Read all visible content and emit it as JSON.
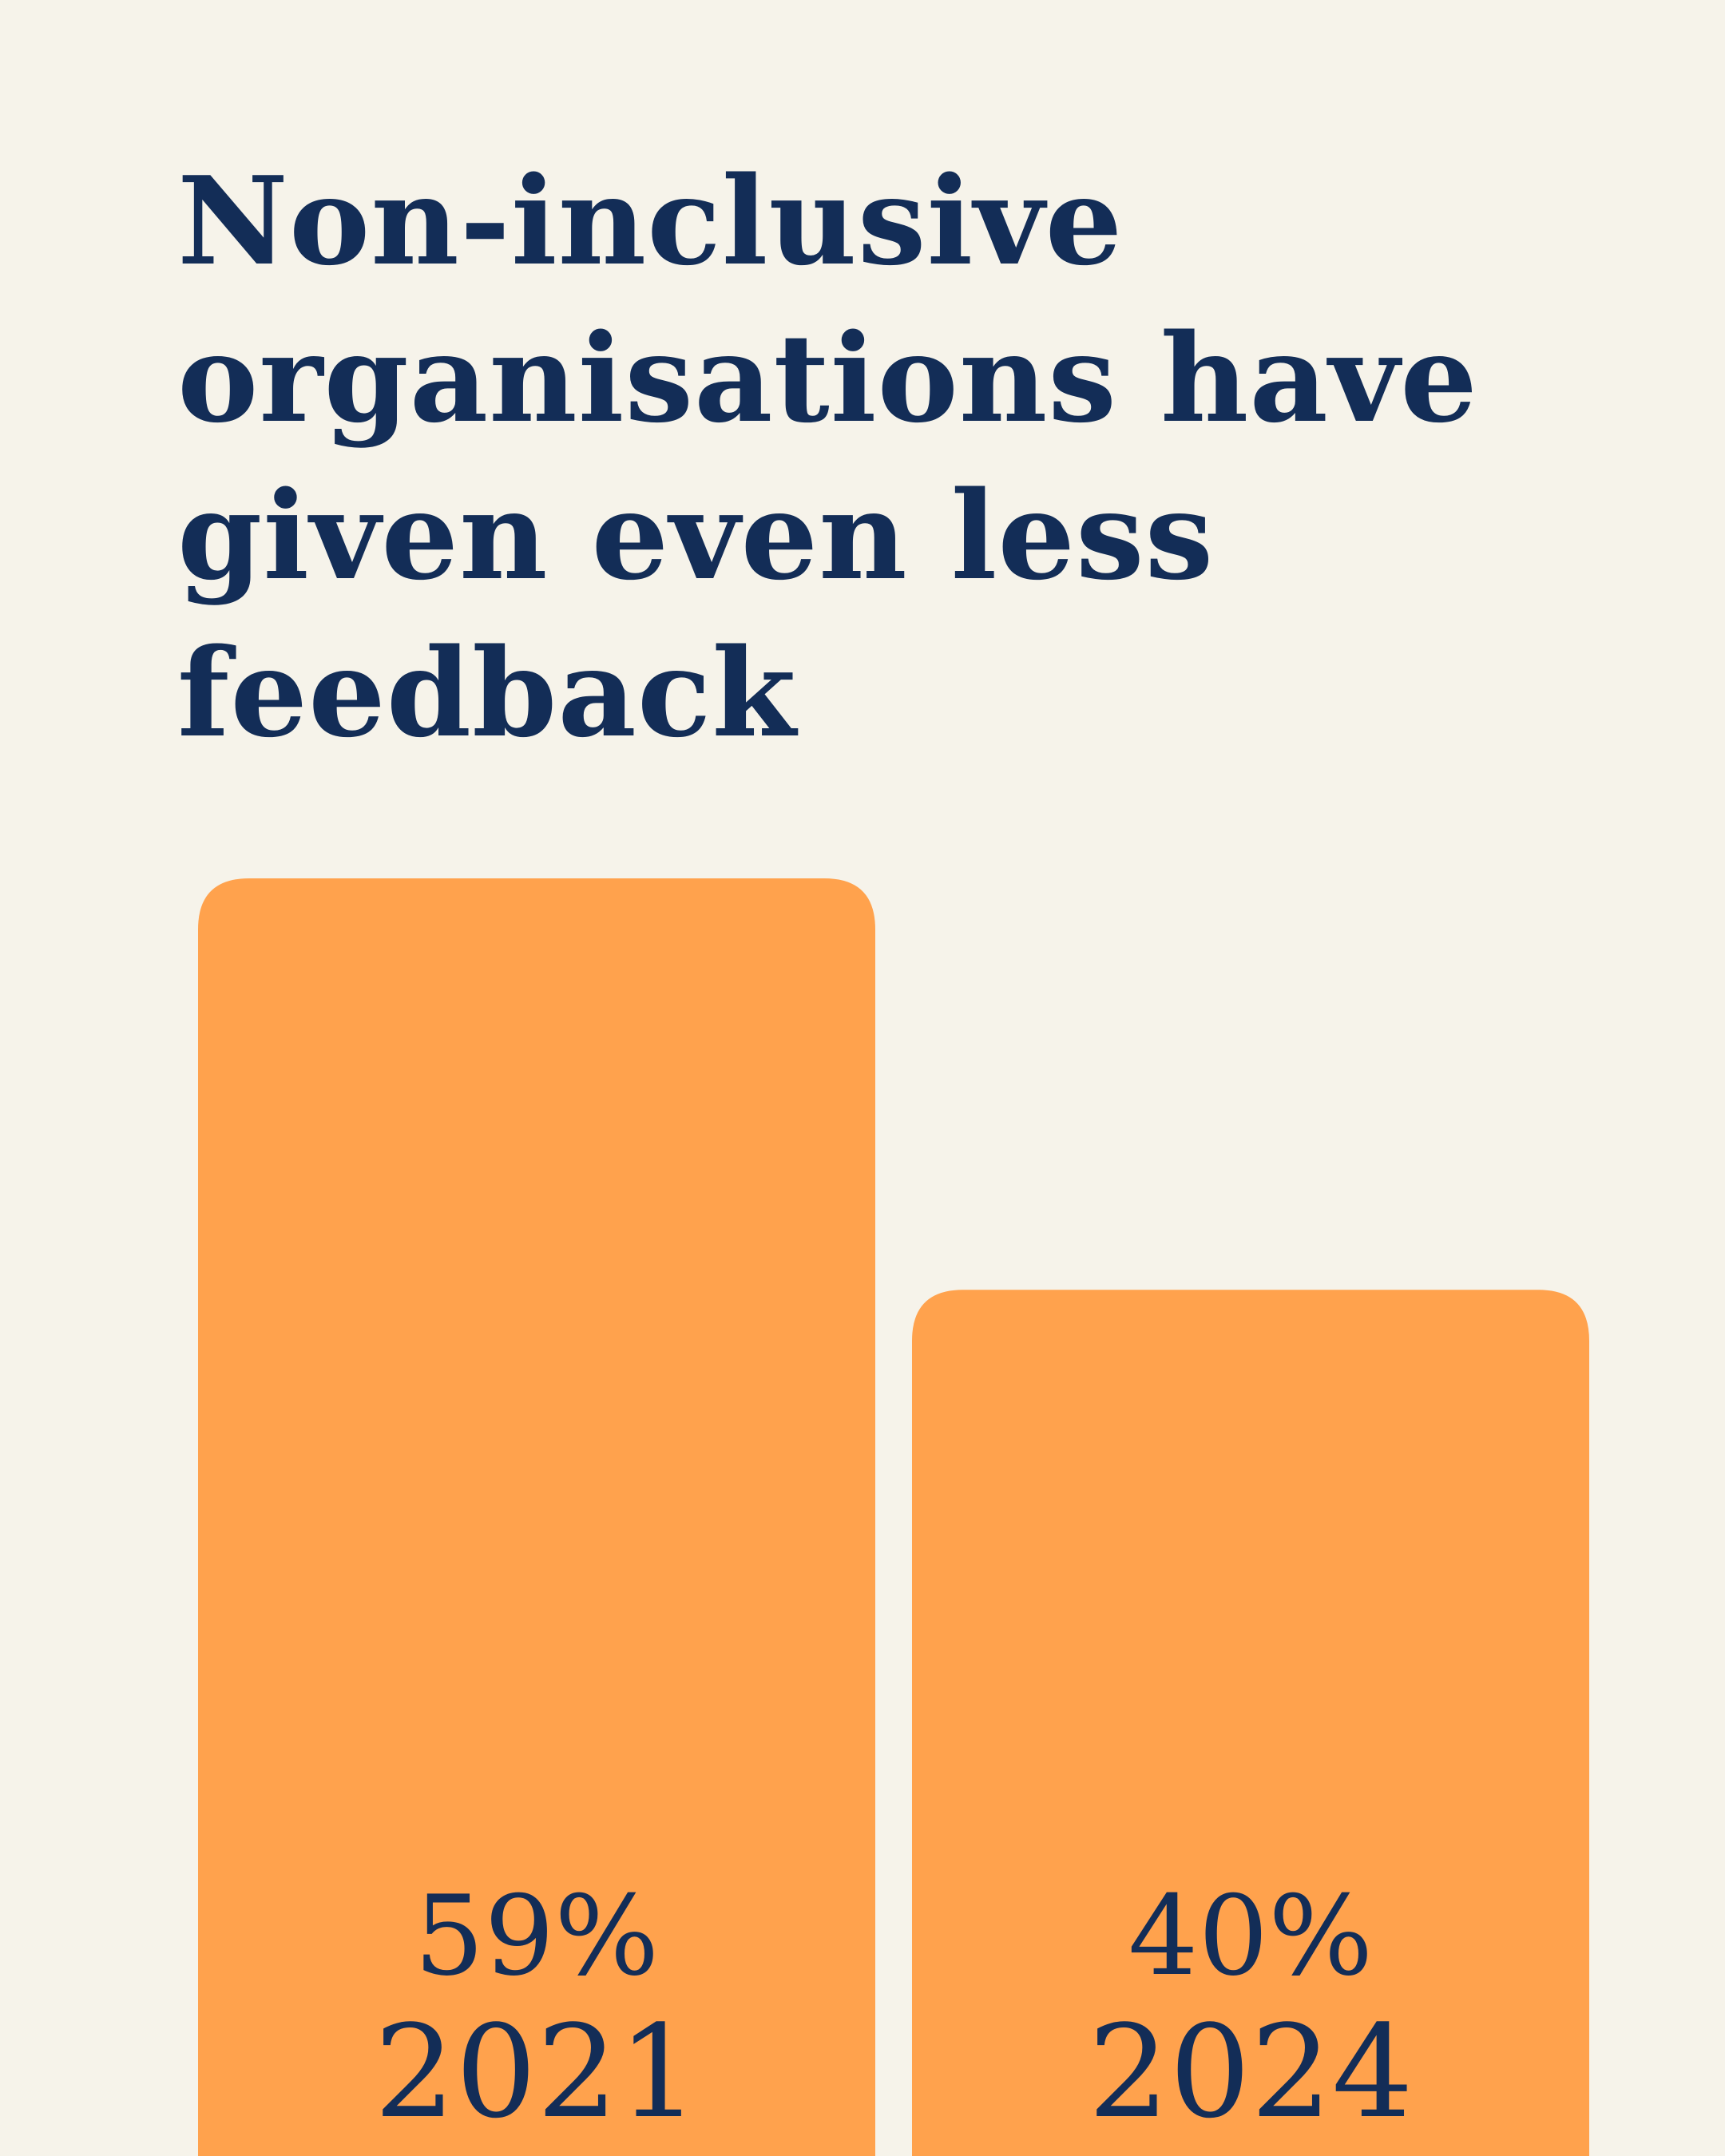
{
  "chart_data": {
    "type": "bar",
    "title": "Non-inclusive organisations have given even less feedback",
    "categories": [
      "2021",
      "2024"
    ],
    "values": [
      59,
      40
    ],
    "value_labels": [
      "59%",
      "40%"
    ],
    "unit": "%",
    "xlabel": "",
    "ylabel": "",
    "ylim": [
      0,
      59
    ],
    "grid": false,
    "legend": "none"
  },
  "colors": {
    "background": "#f6f3ea",
    "bar": "#ffa24d",
    "text": "#132d57"
  }
}
